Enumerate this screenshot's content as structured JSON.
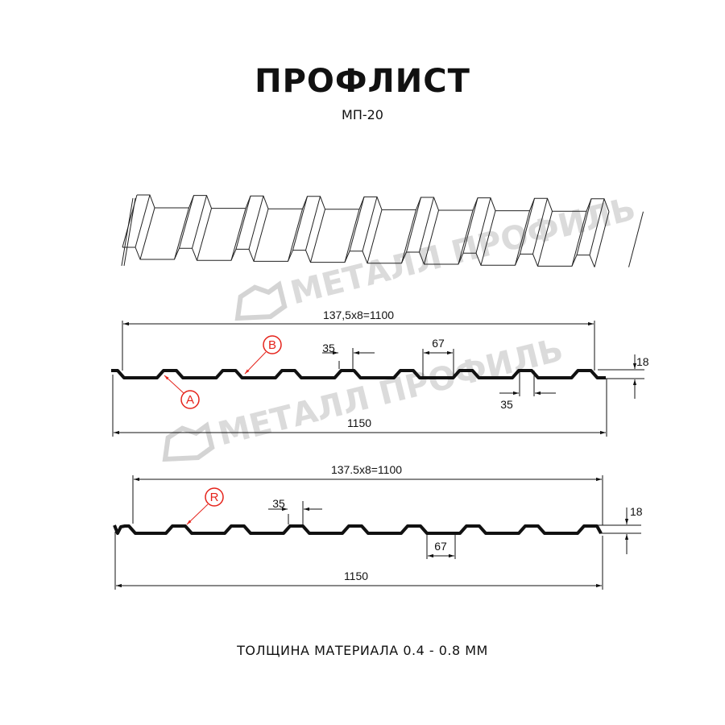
{
  "header": {
    "title": "ПРОФЛИСТ",
    "subtitle": "МП-20"
  },
  "watermark": {
    "text": "МЕТАЛЛ ПРОФИЛЬ"
  },
  "profile_a": {
    "pitch_label": "137,5x8=1100",
    "total_label": "1150",
    "rib_top_label": "35",
    "rib_bottom_label": "35",
    "trough_label": "67",
    "height_label": "18",
    "markers": [
      "B",
      "A"
    ]
  },
  "profile_r": {
    "pitch_label": "137.5x8=1100",
    "total_label": "1150",
    "rib_top_label": "35",
    "trough_label": "67",
    "height_label": "18",
    "markers": [
      "R"
    ]
  },
  "footer": {
    "text": "ТОЛЩИНА МАТЕРИАЛА 0.4 - 0.8 ММ"
  },
  "colors": {
    "line": "#111111",
    "marker": "#e5231b",
    "watermark": "#cfcfcf"
  }
}
